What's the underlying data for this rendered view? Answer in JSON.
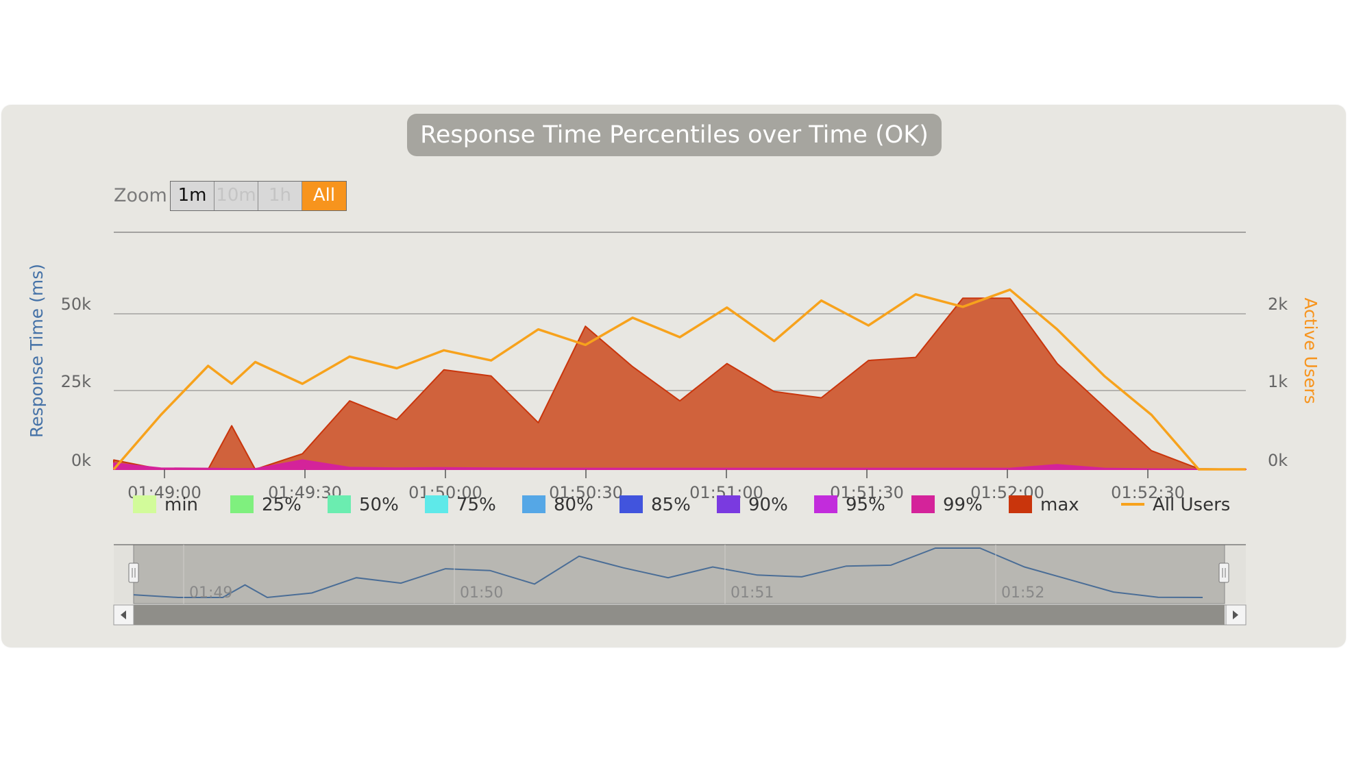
{
  "title": "Response Time Percentiles over Time (OK)",
  "zoom": {
    "label": "Zoom",
    "buttons": [
      "1m",
      "10m",
      "1h",
      "All"
    ],
    "selected": "All"
  },
  "chart_data": {
    "type": "area",
    "title": "Response Time Percentiles over Time (OK)",
    "x_ticks": [
      "01:49:00",
      "01:49:30",
      "01:50:00",
      "01:50:30",
      "01:51:00",
      "01:51:30",
      "01:52:00",
      "01:52:30"
    ],
    "y_left": {
      "label": "Response Time (ms)",
      "ticks": [
        "0k",
        "25k",
        "50k"
      ],
      "range": [
        0,
        50000
      ]
    },
    "y_right": {
      "label": "Active Users",
      "ticks": [
        "0k",
        "1k",
        "2k"
      ],
      "range": [
        0,
        2000
      ]
    },
    "legend": [
      {
        "name": "min",
        "color": "#d2fb9a"
      },
      {
        "name": "25%",
        "color": "#7ff07e"
      },
      {
        "name": "50%",
        "color": "#6bedb0"
      },
      {
        "name": "75%",
        "color": "#5ee9e9"
      },
      {
        "name": "80%",
        "color": "#55a7e6"
      },
      {
        "name": "85%",
        "color": "#4154dd"
      },
      {
        "name": "90%",
        "color": "#7a3ae0"
      },
      {
        "name": "95%",
        "color": "#c22cdc"
      },
      {
        "name": "99%",
        "color": "#d4239a"
      },
      {
        "name": "max",
        "color": "#c9350c"
      },
      {
        "name": "All Users",
        "color": "#f7a21c"
      }
    ],
    "x_seconds": [
      0,
      10,
      20,
      25,
      30,
      40,
      50,
      60,
      70,
      80,
      90,
      100,
      110,
      120,
      130,
      140,
      150,
      160,
      170,
      180,
      190,
      200,
      210,
      220,
      230,
      240
    ],
    "series": [
      {
        "name": "max",
        "values": [
          3000,
          0,
          0,
          14000,
          0,
          5000,
          22000,
          16000,
          32000,
          30000,
          15000,
          46000,
          33000,
          22000,
          34000,
          25000,
          23000,
          35000,
          36000,
          55000,
          55000,
          34000,
          20000,
          6000,
          200,
          0
        ]
      },
      {
        "name": "99%",
        "values": [
          2000,
          400,
          300,
          200,
          200,
          3000,
          600,
          400,
          500,
          400,
          300,
          300,
          300,
          300,
          300,
          300,
          300,
          300,
          300,
          300,
          300,
          1500,
          300,
          100,
          0,
          0
        ]
      },
      {
        "name": "All Users",
        "values": [
          0,
          700,
          1330,
          1100,
          1380,
          1100,
          1450,
          1300,
          1530,
          1400,
          1800,
          1600,
          1950,
          1700,
          2080,
          1650,
          2170,
          1850,
          2250,
          2090,
          2310,
          1800,
          1200,
          700,
          0,
          0
        ]
      }
    ],
    "navigator": {
      "ticks": [
        "01:49",
        "01:50",
        "01:51",
        "01:52"
      ]
    }
  }
}
